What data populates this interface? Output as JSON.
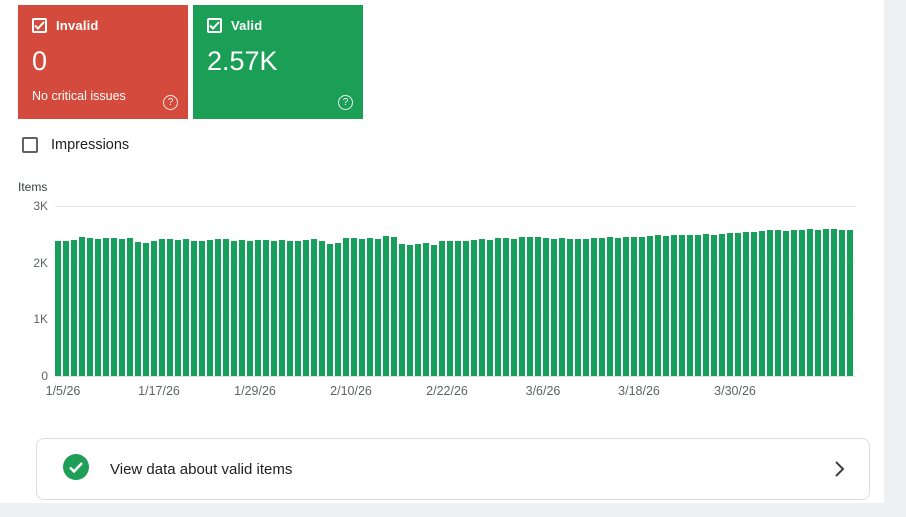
{
  "cards": {
    "invalid": {
      "label": "Invalid",
      "value": "0",
      "subtitle": "No critical issues",
      "color": "#d44a3c"
    },
    "valid": {
      "label": "Valid",
      "value": "2.57K",
      "color": "#1b9e55"
    }
  },
  "icons": {
    "help_glyph": "?"
  },
  "impressions": {
    "label": "Impressions"
  },
  "chart_data": {
    "type": "bar",
    "title": "Items",
    "ylabel": "Items",
    "ylim": [
      0,
      3000
    ],
    "grid": true,
    "bar_color": "#17a05b",
    "ytick_values": [
      3000,
      2000,
      1000,
      0
    ],
    "ytick_labels": [
      "3K",
      "2K",
      "1K",
      "0"
    ],
    "x_tick_labels": [
      "1/5/26",
      "1/17/26",
      "1/29/26",
      "2/10/26",
      "2/22/26",
      "3/6/26",
      "3/18/26",
      "3/30/26"
    ],
    "x_tick_indices": [
      0,
      12,
      24,
      36,
      48,
      60,
      72,
      84
    ],
    "values": [
      2380,
      2390,
      2400,
      2450,
      2440,
      2420,
      2430,
      2430,
      2420,
      2430,
      2360,
      2350,
      2380,
      2420,
      2410,
      2400,
      2420,
      2380,
      2390,
      2400,
      2420,
      2410,
      2380,
      2400,
      2390,
      2400,
      2400,
      2390,
      2400,
      2380,
      2390,
      2400,
      2420,
      2390,
      2330,
      2350,
      2440,
      2430,
      2420,
      2440,
      2420,
      2470,
      2450,
      2330,
      2320,
      2330,
      2340,
      2320,
      2380,
      2390,
      2380,
      2390,
      2400,
      2420,
      2400,
      2430,
      2440,
      2410,
      2450,
      2460,
      2450,
      2430,
      2420,
      2430,
      2410,
      2420,
      2420,
      2430,
      2440,
      2450,
      2440,
      2450,
      2460,
      2460,
      2470,
      2480,
      2470,
      2480,
      2490,
      2480,
      2490,
      2500,
      2490,
      2510,
      2520,
      2530,
      2540,
      2550,
      2560,
      2570,
      2570,
      2560,
      2580,
      2570,
      2590,
      2580,
      2600,
      2590,
      2580,
      2570
    ]
  },
  "footer": {
    "text": "View data about valid items"
  }
}
